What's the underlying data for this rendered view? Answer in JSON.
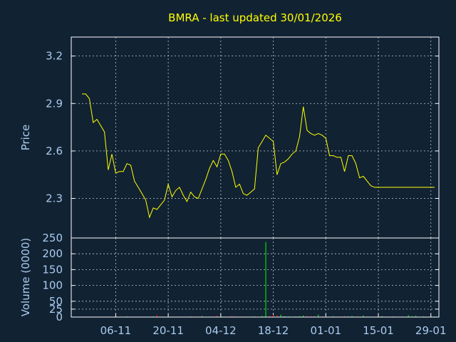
{
  "colors": {
    "background": "#112233",
    "frame": "#ffffff",
    "grid": "#ffffff",
    "title": "#ffff00",
    "axis_text": "#aaccee",
    "price_line": "#ffff00",
    "volume_bar": "#00ff00",
    "volume_bar_down": "#ff0000"
  },
  "chart_data": [
    {
      "type": "line",
      "panel": "price",
      "title": "BMRA - last updated 30/01/2026",
      "ylabel": "Price",
      "ylim": [
        2.05,
        3.32
      ],
      "yticks": [
        2.3,
        2.6,
        2.9,
        3.2
      ],
      "ytick_labels": [
        "2.3",
        "2.6",
        "2.9",
        "3.2"
      ],
      "xlabel": "",
      "xtick_labels": [
        "06-11",
        "20-11",
        "04-12",
        "18-12",
        "01-01",
        "15-01",
        "29-01"
      ],
      "grid": true,
      "series": [
        {
          "dates": [
            "2025-10-28",
            "2025-10-29",
            "2025-10-30",
            "2025-10-31",
            "2025-11-01",
            "2025-11-02",
            "2025-11-03",
            "2025-11-04",
            "2025-11-05",
            "2025-11-06",
            "2025-11-07",
            "2025-11-08",
            "2025-11-09",
            "2025-11-10",
            "2025-11-11",
            "2025-11-12",
            "2025-11-13",
            "2025-11-14",
            "2025-11-15",
            "2025-11-16",
            "2025-11-17",
            "2025-11-18",
            "2025-11-19",
            "2025-11-20",
            "2025-11-21",
            "2025-11-22",
            "2025-11-23",
            "2025-11-24",
            "2025-11-25",
            "2025-11-26",
            "2025-11-27",
            "2025-11-28",
            "2025-11-29",
            "2025-11-30",
            "2025-12-01",
            "2025-12-02",
            "2025-12-03",
            "2025-12-04",
            "2025-12-05",
            "2025-12-06",
            "2025-12-07",
            "2025-12-08",
            "2025-12-09",
            "2025-12-10",
            "2025-12-11",
            "2025-12-12",
            "2025-12-13",
            "2025-12-14",
            "2025-12-15",
            "2025-12-16",
            "2025-12-17",
            "2025-12-18",
            "2025-12-19",
            "2025-12-20",
            "2025-12-21",
            "2025-12-22",
            "2025-12-23",
            "2025-12-24",
            "2025-12-25",
            "2025-12-26",
            "2025-12-27",
            "2025-12-28",
            "2025-12-29",
            "2025-12-30",
            "2025-12-31",
            "2026-01-01",
            "2026-01-02",
            "2026-01-03",
            "2026-01-04",
            "2026-01-05",
            "2026-01-06",
            "2026-01-07",
            "2026-01-08",
            "2026-01-09",
            "2026-01-10",
            "2026-01-11",
            "2026-01-12",
            "2026-01-13",
            "2026-01-14",
            "2026-01-15",
            "2026-01-16",
            "2026-01-17",
            "2026-01-18",
            "2026-01-19",
            "2026-01-20",
            "2026-01-21",
            "2026-01-22",
            "2026-01-23",
            "2026-01-24",
            "2026-01-25",
            "2026-01-26",
            "2026-01-27",
            "2026-01-28",
            "2026-01-29",
            "2026-01-30"
          ],
          "values": [
            2.96,
            2.96,
            2.93,
            2.78,
            2.8,
            2.76,
            2.72,
            2.48,
            2.58,
            2.46,
            2.47,
            2.47,
            2.52,
            2.51,
            2.41,
            2.37,
            2.33,
            2.29,
            2.18,
            2.24,
            2.23,
            2.26,
            2.29,
            2.39,
            2.31,
            2.35,
            2.37,
            2.32,
            2.28,
            2.34,
            2.31,
            2.3,
            2.36,
            2.42,
            2.49,
            2.54,
            2.5,
            2.58,
            2.58,
            2.54,
            2.47,
            2.37,
            2.39,
            2.33,
            2.32,
            2.34,
            2.36,
            2.62,
            2.66,
            2.7,
            2.68,
            2.66,
            2.45,
            2.52,
            2.53,
            2.55,
            2.58,
            2.6,
            2.69,
            2.88,
            2.73,
            2.71,
            2.7,
            2.71,
            2.7,
            2.68,
            2.57,
            2.57,
            2.56,
            2.56,
            2.47,
            2.57,
            2.57,
            2.52,
            2.43,
            2.44,
            2.41,
            2.38,
            2.37,
            2.37,
            2.37,
            2.37,
            2.37,
            2.37,
            2.37,
            2.37,
            2.37,
            2.37,
            2.37,
            2.37,
            2.37,
            2.37,
            2.37,
            2.37,
            2.37
          ]
        }
      ]
    },
    {
      "type": "bar",
      "panel": "volume",
      "ylabel": "Volume (0000)",
      "ylim": [
        0,
        250
      ],
      "yticks": [
        0,
        25,
        50,
        100,
        150,
        200,
        250
      ],
      "ytick_labels": [
        "0",
        "25",
        "50",
        "100",
        "150",
        "200",
        "250"
      ],
      "grid": true,
      "series": [
        {
          "dates": [
            "2025-10-28",
            "2025-10-29",
            "2025-10-30",
            "2025-10-31",
            "2025-11-01",
            "2025-11-02",
            "2025-11-03",
            "2025-11-04",
            "2025-11-05",
            "2025-11-06",
            "2025-11-07",
            "2025-11-08",
            "2025-11-09",
            "2025-11-10",
            "2025-11-11",
            "2025-11-12",
            "2025-11-13",
            "2025-11-14",
            "2025-11-15",
            "2025-11-16",
            "2025-11-17",
            "2025-11-18",
            "2025-11-19",
            "2025-11-20",
            "2025-11-21",
            "2025-11-22",
            "2025-11-23",
            "2025-11-24",
            "2025-11-25",
            "2025-11-26",
            "2025-11-27",
            "2025-11-28",
            "2025-11-29",
            "2025-11-30",
            "2025-12-01",
            "2025-12-02",
            "2025-12-03",
            "2025-12-04",
            "2025-12-05",
            "2025-12-06",
            "2025-12-07",
            "2025-12-08",
            "2025-12-09",
            "2025-12-10",
            "2025-12-11",
            "2025-12-12",
            "2025-12-13",
            "2025-12-14",
            "2025-12-15",
            "2025-12-16",
            "2025-12-17",
            "2025-12-18",
            "2025-12-19",
            "2025-12-20",
            "2025-12-21",
            "2025-12-22",
            "2025-12-23",
            "2025-12-24",
            "2025-12-25",
            "2025-12-26",
            "2025-12-27",
            "2025-12-28",
            "2025-12-29",
            "2025-12-30",
            "2025-12-31",
            "2026-01-01",
            "2026-01-02",
            "2026-01-03",
            "2026-01-04",
            "2026-01-05",
            "2026-01-06",
            "2026-01-07",
            "2026-01-08",
            "2026-01-09",
            "2026-01-10",
            "2026-01-11",
            "2026-01-12",
            "2026-01-13",
            "2026-01-14",
            "2026-01-15",
            "2026-01-16",
            "2026-01-17",
            "2026-01-18",
            "2026-01-19",
            "2026-01-20",
            "2026-01-21",
            "2026-01-22",
            "2026-01-23",
            "2026-01-24",
            "2026-01-25",
            "2026-01-26",
            "2026-01-27",
            "2026-01-28",
            "2026-01-29",
            "2026-01-30"
          ],
          "values": [
            0,
            1,
            1,
            0,
            1,
            2,
            1,
            0,
            1,
            0,
            1,
            1,
            2,
            1,
            0,
            1,
            0,
            1,
            1,
            2,
            8,
            1,
            1,
            2,
            1,
            1,
            0,
            1,
            1,
            2,
            2,
            1,
            3,
            1,
            1,
            0,
            5,
            2,
            1,
            1,
            4,
            3,
            1,
            2,
            1,
            1,
            2,
            0,
            3,
            237,
            4,
            7,
            6,
            8,
            3,
            2,
            1,
            2,
            3,
            5,
            4,
            3,
            3,
            8,
            3,
            2,
            1,
            3,
            2,
            1,
            4,
            2,
            3,
            1,
            1,
            5,
            2,
            1,
            2,
            1,
            3,
            1,
            1,
            2,
            0,
            1,
            1,
            6,
            2,
            4,
            0,
            2,
            1,
            1,
            2
          ]
        }
      ]
    }
  ]
}
